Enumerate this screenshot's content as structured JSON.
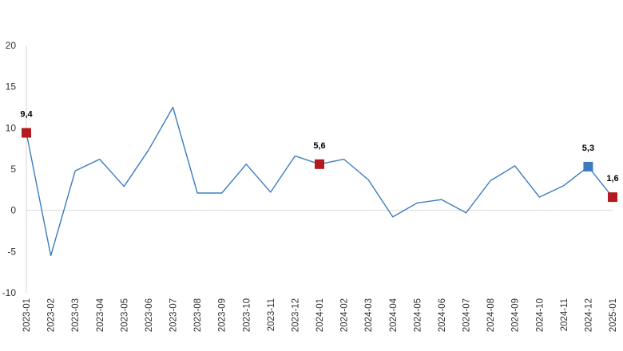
{
  "chart_data": {
    "type": "line",
    "title": "",
    "xlabel": "",
    "ylabel": "",
    "ylim": [
      -10,
      20
    ],
    "yticks": [
      20,
      15,
      10,
      5,
      0,
      -5,
      -10
    ],
    "grid": "zero line only",
    "legend": "none",
    "colors": {
      "line": "#3b7dc0",
      "marker_red": "#b3191e",
      "marker_blue": "#3d7bbf",
      "axis": "#d6d6d6",
      "zero_line": "#dcdcdc"
    },
    "categories": [
      "2023-01",
      "2023-02",
      "2023-03",
      "2023-04",
      "2023-05",
      "2023-06",
      "2023-07",
      "2023-08",
      "2023-09",
      "2023-10",
      "2023-11",
      "2023-12",
      "2024-01",
      "2024-02",
      "2024-03",
      "2024-04",
      "2024-05",
      "2024-06",
      "2024-07",
      "2024-08",
      "2024-09",
      "2024-10",
      "2024-11",
      "2024-12",
      "2025-01"
    ],
    "series": [
      {
        "values": [
          9.4,
          -5.5,
          4.8,
          6.2,
          2.9,
          7.3,
          12.5,
          2.1,
          2.1,
          5.6,
          2.2,
          6.6,
          5.6,
          6.2,
          3.7,
          -0.8,
          0.9,
          1.3,
          -0.3,
          3.6,
          5.4,
          1.6,
          3.0,
          5.3,
          1.6
        ]
      }
    ],
    "highlighted_points": [
      {
        "index": 0,
        "label": "9,4",
        "color": "red"
      },
      {
        "index": 12,
        "label": "5,6",
        "color": "red"
      },
      {
        "index": 23,
        "label": "5,3",
        "color": "blue"
      },
      {
        "index": 24,
        "label": "1,6",
        "color": "red"
      }
    ]
  }
}
